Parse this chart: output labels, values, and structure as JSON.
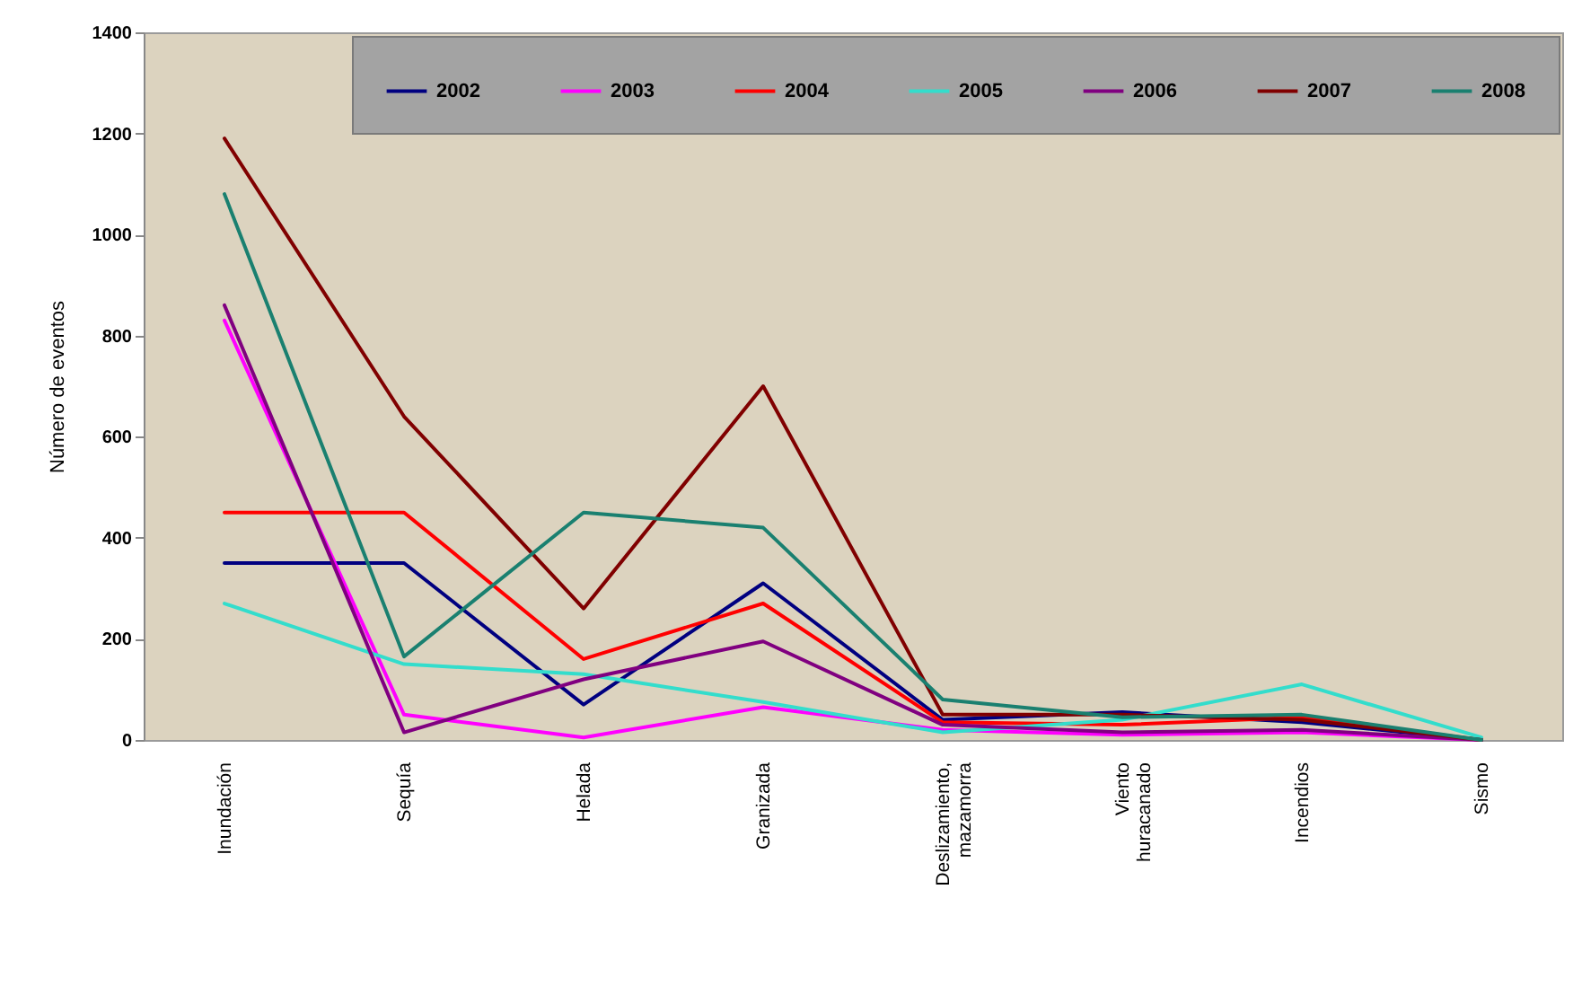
{
  "chart_data": {
    "type": "line",
    "ylabel": "Número de eventos",
    "categories": [
      "Inundación",
      "Sequía",
      "Helada",
      "Granizada",
      "Deslizamiento, mazamorra",
      "Viento huracanado",
      "Incendios",
      "Sismo"
    ],
    "series": [
      {
        "name": "2002",
        "color": "#000080",
        "values": [
          350,
          350,
          70,
          310,
          40,
          55,
          35,
          0
        ]
      },
      {
        "name": "2003",
        "color": "#ff00ff",
        "values": [
          830,
          50,
          5,
          65,
          20,
          10,
          15,
          0
        ]
      },
      {
        "name": "2004",
        "color": "#ff0000",
        "values": [
          450,
          450,
          160,
          270,
          35,
          30,
          45,
          0
        ]
      },
      {
        "name": "2005",
        "color": "#33ddcc",
        "values": [
          270,
          150,
          130,
          75,
          15,
          40,
          110,
          5
        ]
      },
      {
        "name": "2006",
        "color": "#800080",
        "values": [
          860,
          15,
          120,
          195,
          30,
          15,
          20,
          0
        ]
      },
      {
        "name": "2007",
        "color": "#800000",
        "values": [
          1190,
          640,
          260,
          700,
          50,
          50,
          40,
          0
        ]
      },
      {
        "name": "2008",
        "color": "#1a8070",
        "values": [
          1080,
          165,
          450,
          420,
          80,
          45,
          50,
          0
        ]
      }
    ],
    "ylim": [
      0,
      1400
    ],
    "yticks": [
      0,
      200,
      400,
      600,
      800,
      1000,
      1200,
      1400
    ],
    "legend": "top right"
  }
}
